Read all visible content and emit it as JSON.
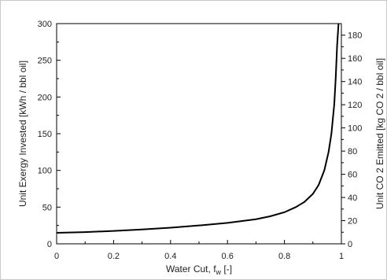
{
  "chart_data": {
    "type": "line",
    "title": "",
    "xlabel": "Water Cut, f",
    "xlabel_sub": "w",
    "xlabel_unit": " [-]",
    "ylabel": "Unit Exergy Invested [kWh / bbl oil]",
    "y2label": "Unit CO 2 Emitted  [kg CO  2 / bbl oil]",
    "xlim": [
      0,
      1
    ],
    "ylim": [
      0,
      300
    ],
    "y2lim": [
      0,
      190
    ],
    "x_ticks": [
      "0",
      "0.2",
      "0.4",
      "0.6",
      "0.8",
      "1"
    ],
    "y_ticks": [
      "0",
      "50",
      "100",
      "150",
      "200",
      "250",
      "300"
    ],
    "y2_ticks": [
      "0",
      "20",
      "40",
      "60",
      "80",
      "100",
      "120",
      "140",
      "160",
      "180"
    ],
    "grid": false,
    "series": [
      {
        "x": [
          0,
          0.1,
          0.2,
          0.3,
          0.4,
          0.5,
          0.6,
          0.7,
          0.75,
          0.8,
          0.84,
          0.87,
          0.9,
          0.92,
          0.94,
          0.955,
          0.965,
          0.975,
          0.98,
          0.985,
          0.99
        ],
        "y": [
          15,
          16,
          17.5,
          19.5,
          22,
          25,
          28.5,
          33.5,
          37.5,
          43,
          50,
          57,
          68,
          80,
          100,
          125,
          150,
          190,
          225,
          270,
          300
        ]
      }
    ]
  }
}
